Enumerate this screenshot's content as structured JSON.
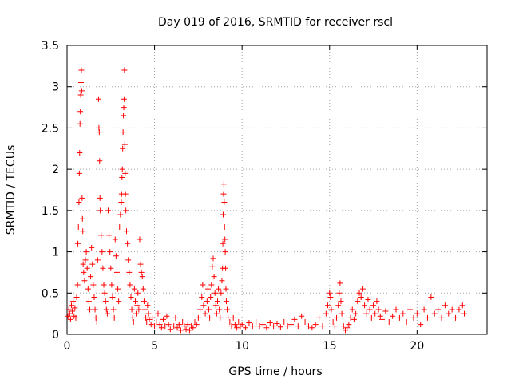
{
  "chart_data": {
    "type": "scatter",
    "title": "Day 019 of 2016, SRMTID for receiver rscl",
    "xlabel": "GPS time / hours",
    "ylabel": "SRMTID / TECUs",
    "xlim": [
      0,
      24
    ],
    "ylim": [
      0,
      3.5
    ],
    "xticks": [
      0,
      5,
      10,
      15,
      20
    ],
    "xtick_labels": [
      "0",
      "5",
      "10",
      "15",
      "20"
    ],
    "yticks": [
      0,
      0.5,
      1,
      1.5,
      2,
      2.5,
      3,
      3.5
    ],
    "ytick_labels": [
      "0",
      "0.5",
      "1",
      "1.5",
      "2",
      "2.5",
      "3",
      "3.5"
    ],
    "grid": true,
    "marker": "+",
    "color": "#ff0000",
    "series": [
      {
        "name": "SRMTID",
        "points": [
          [
            0.05,
            0.22
          ],
          [
            0.1,
            0.3
          ],
          [
            0.15,
            0.25
          ],
          [
            0.2,
            0.18
          ],
          [
            0.25,
            0.35
          ],
          [
            0.3,
            0.28
          ],
          [
            0.35,
            0.4
          ],
          [
            0.4,
            0.22
          ],
          [
            0.45,
            0.32
          ],
          [
            0.5,
            0.2
          ],
          [
            0.55,
            0.45
          ],
          [
            0.6,
            0.6
          ],
          [
            0.62,
            1.1
          ],
          [
            0.65,
            1.3
          ],
          [
            0.68,
            1.6
          ],
          [
            0.7,
            1.95
          ],
          [
            0.72,
            2.2
          ],
          [
            0.74,
            2.55
          ],
          [
            0.76,
            2.7
          ],
          [
            0.78,
            2.9
          ],
          [
            0.8,
            3.05
          ],
          [
            0.82,
            3.2
          ],
          [
            0.84,
            2.95
          ],
          [
            0.86,
            1.65
          ],
          [
            0.88,
            1.4
          ],
          [
            0.9,
            1.25
          ],
          [
            0.92,
            0.85
          ],
          [
            0.95,
            0.75
          ],
          [
            1.0,
            0.65
          ],
          [
            1.05,
            0.9
          ],
          [
            1.1,
            1.0
          ],
          [
            1.15,
            0.8
          ],
          [
            1.2,
            0.55
          ],
          [
            1.25,
            0.4
          ],
          [
            1.3,
            0.3
          ],
          [
            1.35,
            0.7
          ],
          [
            1.4,
            1.05
          ],
          [
            1.45,
            0.85
          ],
          [
            1.5,
            0.6
          ],
          [
            1.55,
            0.45
          ],
          [
            1.6,
            0.3
          ],
          [
            1.65,
            0.2
          ],
          [
            1.7,
            0.15
          ],
          [
            1.75,
            0.9
          ],
          [
            1.8,
            2.85
          ],
          [
            1.82,
            2.5
          ],
          [
            1.84,
            2.45
          ],
          [
            1.86,
            2.1
          ],
          [
            1.88,
            1.65
          ],
          [
            1.9,
            1.5
          ],
          [
            1.95,
            1.2
          ],
          [
            2.0,
            1.0
          ],
          [
            2.05,
            0.8
          ],
          [
            2.1,
            0.6
          ],
          [
            2.15,
            0.5
          ],
          [
            2.2,
            0.4
          ],
          [
            2.25,
            0.3
          ],
          [
            2.3,
            0.25
          ],
          [
            2.35,
            1.5
          ],
          [
            2.4,
            1.2
          ],
          [
            2.45,
            1.0
          ],
          [
            2.5,
            0.8
          ],
          [
            2.55,
            0.6
          ],
          [
            2.6,
            0.45
          ],
          [
            2.65,
            0.3
          ],
          [
            2.7,
            0.2
          ],
          [
            2.75,
            1.15
          ],
          [
            2.8,
            0.95
          ],
          [
            2.85,
            0.75
          ],
          [
            2.9,
            0.55
          ],
          [
            2.95,
            0.4
          ],
          [
            3.0,
            1.3
          ],
          [
            3.05,
            1.45
          ],
          [
            3.1,
            1.6
          ],
          [
            3.12,
            1.7
          ],
          [
            3.14,
            1.9
          ],
          [
            3.16,
            2.0
          ],
          [
            3.18,
            2.25
          ],
          [
            3.2,
            2.45
          ],
          [
            3.22,
            2.65
          ],
          [
            3.24,
            2.75
          ],
          [
            3.26,
            2.85
          ],
          [
            3.28,
            3.2
          ],
          [
            3.3,
            2.3
          ],
          [
            3.32,
            1.95
          ],
          [
            3.34,
            1.7
          ],
          [
            3.36,
            1.5
          ],
          [
            3.4,
            1.25
          ],
          [
            3.45,
            1.1
          ],
          [
            3.5,
            0.9
          ],
          [
            3.55,
            0.75
          ],
          [
            3.6,
            0.6
          ],
          [
            3.65,
            0.45
          ],
          [
            3.7,
            0.3
          ],
          [
            3.75,
            0.2
          ],
          [
            3.8,
            0.15
          ],
          [
            3.85,
            0.55
          ],
          [
            3.9,
            0.4
          ],
          [
            3.95,
            0.25
          ],
          [
            4.0,
            0.35
          ],
          [
            4.05,
            0.5
          ],
          [
            4.1,
            0.3
          ],
          [
            4.15,
            1.15
          ],
          [
            4.2,
            0.85
          ],
          [
            4.25,
            0.75
          ],
          [
            4.3,
            0.7
          ],
          [
            4.35,
            0.55
          ],
          [
            4.4,
            0.4
          ],
          [
            4.45,
            0.3
          ],
          [
            4.5,
            0.2
          ],
          [
            4.55,
            0.15
          ],
          [
            4.6,
            0.35
          ],
          [
            4.65,
            0.25
          ],
          [
            4.7,
            0.18
          ],
          [
            4.8,
            0.12
          ],
          [
            4.9,
            0.2
          ],
          [
            5.0,
            0.1
          ],
          [
            5.1,
            0.15
          ],
          [
            5.2,
            0.25
          ],
          [
            5.3,
            0.12
          ],
          [
            5.4,
            0.08
          ],
          [
            5.5,
            0.18
          ],
          [
            5.6,
            0.1
          ],
          [
            5.7,
            0.22
          ],
          [
            5.8,
            0.12
          ],
          [
            5.9,
            0.06
          ],
          [
            6.0,
            0.15
          ],
          [
            6.1,
            0.1
          ],
          [
            6.2,
            0.2
          ],
          [
            6.3,
            0.08
          ],
          [
            6.4,
            0.12
          ],
          [
            6.5,
            0.05
          ],
          [
            6.6,
            0.15
          ],
          [
            6.7,
            0.1
          ],
          [
            6.8,
            0.06
          ],
          [
            6.9,
            0.12
          ],
          [
            7.0,
            0.05
          ],
          [
            7.1,
            0.1
          ],
          [
            7.2,
            0.08
          ],
          [
            7.3,
            0.15
          ],
          [
            7.4,
            0.12
          ],
          [
            7.5,
            0.2
          ],
          [
            7.6,
            0.3
          ],
          [
            7.7,
            0.45
          ],
          [
            7.75,
            0.6
          ],
          [
            7.8,
            0.35
          ],
          [
            7.9,
            0.25
          ],
          [
            8.0,
            0.4
          ],
          [
            8.05,
            0.55
          ],
          [
            8.1,
            0.3
          ],
          [
            8.15,
            0.2
          ],
          [
            8.2,
            0.45
          ],
          [
            8.25,
            0.6
          ],
          [
            8.3,
            0.82
          ],
          [
            8.35,
            0.92
          ],
          [
            8.4,
            0.7
          ],
          [
            8.45,
            0.5
          ],
          [
            8.5,
            0.35
          ],
          [
            8.55,
            0.25
          ],
          [
            8.6,
            0.4
          ],
          [
            8.65,
            0.55
          ],
          [
            8.7,
            0.3
          ],
          [
            8.75,
            0.2
          ],
          [
            8.8,
            0.5
          ],
          [
            8.85,
            0.65
          ],
          [
            8.88,
            0.8
          ],
          [
            8.9,
            1.1
          ],
          [
            8.92,
            1.45
          ],
          [
            8.94,
            1.7
          ],
          [
            8.96,
            1.82
          ],
          [
            8.98,
            1.6
          ],
          [
            9.0,
            1.3
          ],
          [
            9.02,
            1.15
          ],
          [
            9.04,
            1.0
          ],
          [
            9.06,
            0.8
          ],
          [
            9.08,
            0.55
          ],
          [
            9.1,
            0.4
          ],
          [
            9.15,
            0.3
          ],
          [
            9.2,
            0.2
          ],
          [
            9.3,
            0.15
          ],
          [
            9.4,
            0.1
          ],
          [
            9.5,
            0.2
          ],
          [
            9.6,
            0.12
          ],
          [
            9.7,
            0.08
          ],
          [
            9.8,
            0.15
          ],
          [
            9.9,
            0.1
          ],
          [
            10.0,
            0.12
          ],
          [
            10.2,
            0.08
          ],
          [
            10.4,
            0.14
          ],
          [
            10.6,
            0.1
          ],
          [
            10.8,
            0.15
          ],
          [
            11.0,
            0.1
          ],
          [
            11.2,
            0.12
          ],
          [
            11.4,
            0.08
          ],
          [
            11.6,
            0.14
          ],
          [
            11.8,
            0.1
          ],
          [
            12.0,
            0.13
          ],
          [
            12.2,
            0.09
          ],
          [
            12.4,
            0.15
          ],
          [
            12.6,
            0.1
          ],
          [
            12.8,
            0.12
          ],
          [
            13.0,
            0.18
          ],
          [
            13.2,
            0.1
          ],
          [
            13.4,
            0.22
          ],
          [
            13.6,
            0.15
          ],
          [
            13.8,
            0.1
          ],
          [
            14.0,
            0.08
          ],
          [
            14.2,
            0.12
          ],
          [
            14.4,
            0.2
          ],
          [
            14.6,
            0.1
          ],
          [
            14.8,
            0.25
          ],
          [
            14.9,
            0.35
          ],
          [
            15.0,
            0.5
          ],
          [
            15.05,
            0.45
          ],
          [
            15.1,
            0.3
          ],
          [
            15.2,
            0.15
          ],
          [
            15.3,
            0.1
          ],
          [
            15.4,
            0.2
          ],
          [
            15.5,
            0.35
          ],
          [
            15.55,
            0.5
          ],
          [
            15.6,
            0.62
          ],
          [
            15.65,
            0.4
          ],
          [
            15.7,
            0.25
          ],
          [
            15.8,
            0.1
          ],
          [
            15.9,
            0.05
          ],
          [
            16.0,
            0.08
          ],
          [
            16.1,
            0.12
          ],
          [
            16.2,
            0.2
          ],
          [
            16.3,
            0.3
          ],
          [
            16.4,
            0.18
          ],
          [
            16.5,
            0.25
          ],
          [
            16.6,
            0.4
          ],
          [
            16.7,
            0.5
          ],
          [
            16.8,
            0.45
          ],
          [
            16.9,
            0.55
          ],
          [
            17.0,
            0.35
          ],
          [
            17.1,
            0.25
          ],
          [
            17.2,
            0.42
          ],
          [
            17.3,
            0.3
          ],
          [
            17.4,
            0.2
          ],
          [
            17.5,
            0.35
          ],
          [
            17.6,
            0.25
          ],
          [
            17.7,
            0.4
          ],
          [
            17.8,
            0.3
          ],
          [
            17.9,
            0.22
          ],
          [
            18.0,
            0.18
          ],
          [
            18.2,
            0.28
          ],
          [
            18.4,
            0.15
          ],
          [
            18.6,
            0.22
          ],
          [
            18.8,
            0.3
          ],
          [
            19.0,
            0.2
          ],
          [
            19.2,
            0.25
          ],
          [
            19.4,
            0.15
          ],
          [
            19.6,
            0.3
          ],
          [
            19.8,
            0.2
          ],
          [
            20.0,
            0.25
          ],
          [
            20.2,
            0.12
          ],
          [
            20.4,
            0.3
          ],
          [
            20.6,
            0.2
          ],
          [
            20.8,
            0.45
          ],
          [
            21.0,
            0.25
          ],
          [
            21.2,
            0.3
          ],
          [
            21.4,
            0.2
          ],
          [
            21.6,
            0.35
          ],
          [
            21.8,
            0.25
          ],
          [
            22.0,
            0.3
          ],
          [
            22.2,
            0.2
          ],
          [
            22.4,
            0.3
          ],
          [
            22.6,
            0.35
          ],
          [
            22.7,
            0.25
          ]
        ]
      }
    ]
  }
}
